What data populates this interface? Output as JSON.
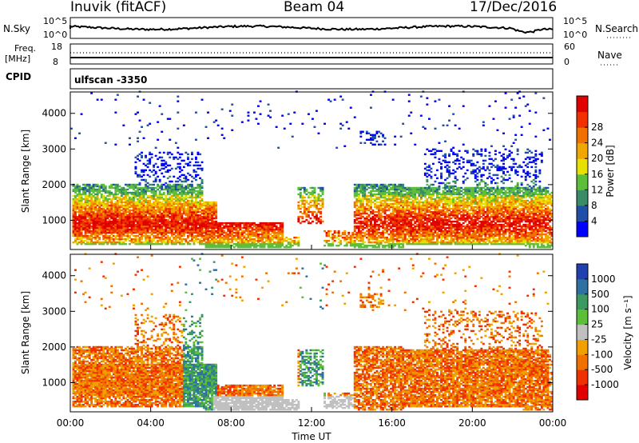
{
  "header": {
    "station": "Inuvik (fitACF)",
    "beam": "Beam 04",
    "date": "17/Dec/2016"
  },
  "status_panels": {
    "nsky_label": "N.Sky",
    "nsearch_label": "N.Search",
    "nsky_ticks": [
      "10^5",
      "10^0"
    ],
    "nsearch_ticks": [
      "10^5",
      "10^0"
    ],
    "freq_label_1": "Freq.",
    "freq_label_2": "[MHz]",
    "freq_ticks": [
      "18",
      "8"
    ],
    "nave_label": "Nave",
    "nave_ticks": [
      "60",
      "0"
    ],
    "cpid_label": "CPID",
    "cpid_value": "ulfscan -3350"
  },
  "chart_data": [
    {
      "type": "heatmap",
      "name": "power",
      "ylabel": "Slant Range [km]",
      "xlabel": "",
      "x_ticks": [
        "00:00",
        "04:00",
        "08:00",
        "12:00",
        "16:00",
        "20:00",
        "00:00"
      ],
      "y_ticks": [
        "1000",
        "2000",
        "3000",
        "4000"
      ],
      "xlim_hours": [
        0,
        24
      ],
      "ylim_km": [
        180,
        4600
      ],
      "colorbar": {
        "label": "Power [dB]",
        "ticks": [
          "4",
          "8",
          "12",
          "16",
          "20",
          "24",
          "28"
        ],
        "colors": [
          "#0000ff",
          "#1f4fa8",
          "#3a8c68",
          "#5cbf3a",
          "#e8e000",
          "#f0a800",
          "#f07000",
          "#f03000",
          "#e00000"
        ]
      }
    },
    {
      "type": "heatmap",
      "name": "velocity",
      "ylabel": "Slant Range [km]",
      "xlabel": "Time UT",
      "x_ticks": [
        "00:00",
        "04:00",
        "08:00",
        "12:00",
        "16:00",
        "20:00",
        "00:00"
      ],
      "y_ticks": [
        "1000",
        "2000",
        "3000",
        "4000"
      ],
      "xlim_hours": [
        0,
        24
      ],
      "ylim_km": [
        180,
        4600
      ],
      "colorbar": {
        "label": "Velocity [m s⁻¹]",
        "ticks": [
          "1000",
          "500",
          "100",
          "25",
          "-25",
          "-100",
          "-500",
          "-1000"
        ],
        "colors": [
          "#2040b0",
          "#2e70a0",
          "#3a9a60",
          "#5cbf3a",
          "#c0c0c0",
          "#f0a000",
          "#f07000",
          "#f03000",
          "#e00000"
        ]
      }
    }
  ]
}
